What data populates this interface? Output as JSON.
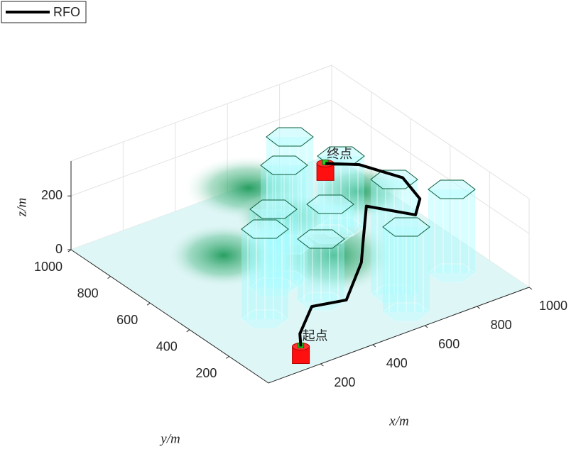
{
  "chart_data": {
    "type": "path3d",
    "series": [
      {
        "name": "RFO",
        "color": "#000000",
        "x": [
          200,
          200,
          310,
          420,
          595,
          665,
          815,
          905,
          975,
          1000,
          970,
          900
        ],
        "y": [
          100,
          105,
          190,
          160,
          315,
          400,
          580,
          450,
          520,
          640,
          820,
          900
        ],
        "z": [
          15,
          60,
          80,
          80,
          80,
          80,
          80,
          80,
          80,
          90,
          60,
          50
        ]
      }
    ],
    "start_label": "起点",
    "end_label": "终点",
    "xlabel": "x/m",
    "ylabel": "y/m",
    "zlabel": "z/m",
    "xlim": [
      0,
      1000
    ],
    "ylim": [
      0,
      1000
    ],
    "zlim": [
      0,
      330
    ],
    "xticks": [
      200,
      400,
      600,
      800,
      1000
    ],
    "yticks": [
      200,
      400,
      600,
      800,
      1000
    ],
    "zticks": [
      0,
      200
    ],
    "grid": true
  }
}
